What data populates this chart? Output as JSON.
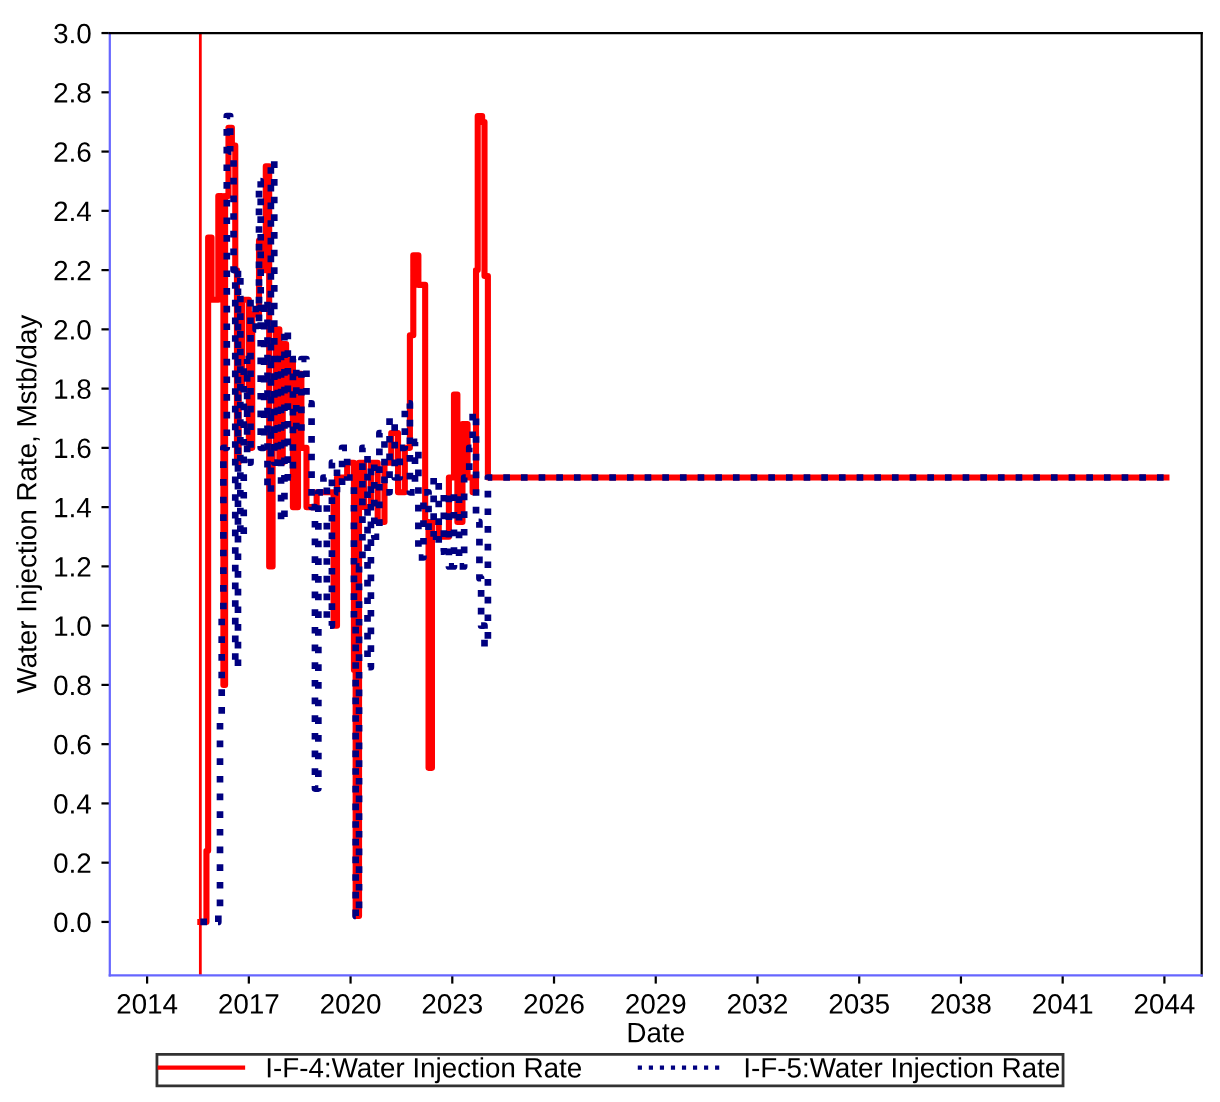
{
  "chart_data": {
    "type": "step",
    "xlabel": "Date",
    "ylabel": "Water Injection Rate, Mstb/day",
    "xlim": [
      2012.9,
      2045.1
    ],
    "xticks": [
      2014,
      2017,
      2020,
      2023,
      2026,
      2029,
      2032,
      2035,
      2038,
      2041,
      2044
    ],
    "ylim": [
      -0.18,
      3.0
    ],
    "yticks": [
      {
        "value": 0,
        "label": "0.0"
      },
      {
        "value": 0.2,
        "label": "0.2"
      },
      {
        "value": 0.4,
        "label": "0.4"
      },
      {
        "value": 0.6,
        "label": "0.6"
      },
      {
        "value": 0.8,
        "label": "0.8"
      },
      {
        "value": 1.0,
        "label": "1.0"
      },
      {
        "value": 1.2,
        "label": "1.2"
      },
      {
        "value": 1.4,
        "label": "1.4"
      },
      {
        "value": 1.6,
        "label": "1.6"
      },
      {
        "value": 1.8,
        "label": "1.8"
      },
      {
        "value": 2.0,
        "label": "2.0"
      },
      {
        "value": 2.2,
        "label": "2.2"
      },
      {
        "value": 2.4,
        "label": "2.4"
      },
      {
        "value": 2.6,
        "label": "2.6"
      },
      {
        "value": 2.8,
        "label": "2.8"
      },
      {
        "value": 3.0,
        "label": "3.0"
      }
    ],
    "grid": false,
    "legend": "bottom",
    "marker": "none",
    "ref_lines": [
      {
        "axis": "x",
        "value": 2015.57,
        "color": "#ff0000",
        "line_style": "solid"
      }
    ],
    "series": [
      {
        "name": "I-F-4:Water Injection Rate",
        "color": "#ff0000",
        "line_style": "solid",
        "x": [
          2015.57,
          2015.75,
          2015.8,
          2015.9,
          2016.1,
          2016.2,
          2016.25,
          2016.3,
          2016.4,
          2016.5,
          2016.6,
          2016.65,
          2016.7,
          2016.8,
          2017.0,
          2017.1,
          2017.3,
          2017.4,
          2017.5,
          2017.6,
          2017.7,
          2017.8,
          2017.9,
          2018.0,
          2018.1,
          2018.2,
          2018.3,
          2018.45,
          2018.55,
          2018.7,
          2019.0,
          2019.5,
          2019.6,
          2019.9,
          2020.1,
          2020.15,
          2020.25,
          2020.4,
          2020.6,
          2020.8,
          2021.0,
          2021.2,
          2021.4,
          2021.6,
          2021.75,
          2021.85,
          2022.0,
          2022.2,
          2022.3,
          2022.4,
          2022.6,
          2022.9,
          2023.05,
          2023.15,
          2023.3,
          2023.45,
          2023.6,
          2023.7,
          2023.75,
          2023.88,
          2023.95,
          2024.05,
          2044.06
        ],
        "values": [
          0.0,
          0.24,
          2.31,
          2.1,
          2.45,
          2.4,
          0.8,
          2.45,
          2.68,
          2.62,
          2.2,
          1.55,
          1.8,
          2.1,
          1.6,
          2.05,
          2.3,
          2.2,
          2.55,
          1.2,
          1.6,
          2.0,
          1.55,
          1.95,
          1.75,
          1.9,
          1.4,
          1.85,
          1.6,
          1.4,
          1.45,
          1.0,
          1.5,
          1.55,
          0.85,
          0.02,
          1.55,
          1.4,
          1.55,
          1.35,
          1.55,
          1.65,
          1.45,
          1.6,
          1.98,
          2.25,
          2.15,
          1.35,
          0.52,
          1.35,
          1.3,
          1.5,
          1.78,
          1.35,
          1.68,
          1.5,
          1.45,
          2.2,
          2.72,
          2.7,
          2.18,
          1.5,
          1.5
        ]
      },
      {
        "name": "I-F-5:Water Injection Rate",
        "color": "#000080",
        "line_style": "dotted",
        "x": [
          2015.57,
          2016.1,
          2016.15,
          2016.2,
          2016.25,
          2016.35,
          2016.45,
          2016.55,
          2016.6,
          2016.68,
          2016.75,
          2016.85,
          2016.95,
          2017.05,
          2017.2,
          2017.3,
          2017.35,
          2017.45,
          2017.55,
          2017.65,
          2017.75,
          2017.85,
          2017.95,
          2018.05,
          2018.15,
          2018.3,
          2018.4,
          2018.55,
          2018.7,
          2018.85,
          2018.95,
          2019.05,
          2019.2,
          2019.3,
          2019.45,
          2019.6,
          2019.75,
          2019.9,
          2020.1,
          2020.15,
          2020.25,
          2020.35,
          2020.5,
          2020.6,
          2020.7,
          2020.85,
          2021.0,
          2021.15,
          2021.3,
          2021.45,
          2021.6,
          2021.75,
          2021.9,
          2022.0,
          2022.15,
          2022.3,
          2022.45,
          2022.6,
          2022.75,
          2022.9,
          2023.05,
          2023.2,
          2023.35,
          2023.5,
          2023.6,
          2023.7,
          2023.8,
          2023.85,
          2023.95,
          2024.05,
          2044.06
        ],
        "values": [
          0.0,
          0.03,
          0.7,
          1.05,
          1.6,
          2.72,
          2.6,
          2.2,
          0.86,
          2.2,
          1.3,
          1.9,
          1.55,
          2.1,
          2.0,
          2.5,
          1.6,
          2.1,
          1.45,
          2.57,
          1.55,
          1.9,
          1.35,
          2.0,
          1.5,
          1.9,
          1.65,
          1.9,
          1.75,
          1.4,
          0.45,
          1.45,
          1.5,
          1.0,
          1.55,
          1.45,
          1.6,
          1.5,
          1.0,
          0.02,
          1.2,
          1.6,
          0.86,
          1.55,
          1.3,
          1.65,
          1.45,
          1.7,
          1.5,
          1.6,
          1.75,
          1.45,
          1.62,
          1.23,
          1.45,
          1.3,
          1.5,
          1.25,
          1.45,
          1.2,
          1.45,
          1.2,
          1.5,
          1.6,
          1.72,
          1.35,
          1.16,
          1.0,
          0.93,
          1.5,
          1.5
        ]
      }
    ]
  }
}
